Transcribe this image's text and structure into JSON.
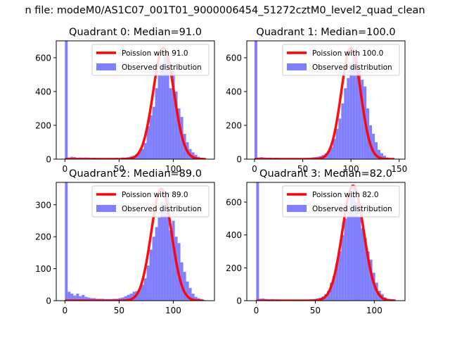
{
  "figure": {
    "suptitle": "n file: modeM0/AS1C07_001T01_9000006454_51272cztM0_level2_quad_clean"
  },
  "chart_data": [
    {
      "type": "bar",
      "title": "Quadrant 0: Median=91.0",
      "xlim": [
        -8,
        138
      ],
      "ylim": [
        0,
        700
      ],
      "xticks": [
        0,
        50,
        100
      ],
      "yticks": [
        0,
        200,
        400,
        600
      ],
      "legend_position": "top-right",
      "hist_color": "#8080ff",
      "hist_series_name": "Observed distribution",
      "hist_bin_width": 2.6,
      "hist_x": [
        0,
        2.6,
        5.2,
        7.8,
        10.4,
        13.0,
        15.6,
        18.2,
        20.8,
        23.4,
        26.0,
        28.6,
        31.2,
        33.8,
        36.4,
        39.0,
        41.6,
        44.2,
        46.8,
        49.4,
        52.0,
        54.6,
        57.2,
        59.8,
        62.4,
        65.0,
        67.6,
        70.2,
        72.8,
        75.4,
        78.0,
        80.6,
        83.2,
        85.8,
        88.4,
        91.0,
        93.6,
        96.2,
        98.8,
        101.4,
        104.0,
        106.6,
        109.2,
        111.8,
        114.4,
        117.0,
        119.6,
        122.2,
        124.8,
        127.4
      ],
      "hist_values": [
        700,
        10,
        14,
        12,
        8,
        10,
        9,
        10,
        9,
        7,
        8,
        6,
        7,
        6,
        5,
        7,
        6,
        6,
        8,
        6,
        10,
        9,
        12,
        16,
        20,
        30,
        42,
        60,
        95,
        195,
        260,
        310,
        420,
        500,
        560,
        640,
        600,
        420,
        560,
        400,
        300,
        250,
        150,
        100,
        60,
        40,
        25,
        14,
        8,
        4
      ],
      "curve_color": "#ff0000",
      "curve_series_name": "Poission with 91.0",
      "curve_mean": 91.0,
      "curve_peak": 660,
      "curve_xmax": 130
    },
    {
      "type": "bar",
      "title": "Quadrant 1: Median=100.0",
      "xlim": [
        -8,
        156
      ],
      "ylim": [
        0,
        700
      ],
      "xticks": [
        0,
        50,
        100,
        150
      ],
      "yticks": [
        0,
        200,
        400,
        600
      ],
      "legend_position": "top-right",
      "hist_color": "#8080ff",
      "hist_series_name": "Observed distribution",
      "hist_bin_width": 2.9,
      "hist_x": [
        0,
        2.9,
        5.8,
        8.7,
        11.6,
        14.5,
        17.4,
        20.3,
        23.2,
        26.1,
        29.0,
        31.9,
        34.8,
        37.7,
        40.6,
        43.5,
        46.4,
        49.3,
        52.2,
        55.1,
        58.0,
        60.9,
        63.8,
        66.7,
        69.6,
        72.5,
        75.4,
        78.3,
        81.2,
        84.1,
        87.0,
        89.9,
        92.8,
        95.7,
        98.6,
        101.5,
        104.4,
        107.3,
        110.2,
        113.1,
        116.0,
        118.9,
        121.8,
        124.7,
        127.6,
        130.5,
        133.4,
        136.3,
        139.2,
        142.1
      ],
      "hist_values": [
        700,
        10,
        12,
        10,
        8,
        9,
        7,
        8,
        7,
        6,
        6,
        5,
        5,
        6,
        4,
        5,
        6,
        6,
        7,
        8,
        10,
        12,
        14,
        18,
        24,
        34,
        50,
        70,
        120,
        180,
        240,
        330,
        420,
        480,
        560,
        650,
        620,
        540,
        470,
        430,
        300,
        200,
        150,
        100,
        55,
        35,
        20,
        10,
        6,
        3
      ],
      "curve_color": "#ff0000",
      "curve_series_name": "Poission with 100.0",
      "curve_mean": 100.0,
      "curve_peak": 660,
      "curve_xmax": 145
    },
    {
      "type": "bar",
      "title": "Quadrant 2: Median=89.0",
      "xlim": [
        -8,
        138
      ],
      "ylim": [
        0,
        370
      ],
      "xticks": [
        0,
        50,
        100
      ],
      "yticks": [
        0,
        100,
        200,
        300
      ],
      "legend_position": "top-right",
      "hist_color": "#8080ff",
      "hist_series_name": "Observed distribution",
      "hist_bin_width": 2.6,
      "hist_x": [
        0,
        2.6,
        5.2,
        7.8,
        10.4,
        13.0,
        15.6,
        18.2,
        20.8,
        23.4,
        26.0,
        28.6,
        31.2,
        33.8,
        36.4,
        39.0,
        41.6,
        44.2,
        46.8,
        49.4,
        52.0,
        54.6,
        57.2,
        59.8,
        62.4,
        65.0,
        67.6,
        70.2,
        72.8,
        75.4,
        78.0,
        80.6,
        83.2,
        85.8,
        88.4,
        91.0,
        93.6,
        96.2,
        98.8,
        101.4,
        104.0,
        106.6,
        109.2,
        111.8,
        114.4,
        117.0,
        119.6,
        122.2,
        124.8,
        127.4
      ],
      "hist_values": [
        370,
        28,
        22,
        16,
        22,
        14,
        18,
        12,
        10,
        8,
        8,
        6,
        6,
        6,
        5,
        5,
        5,
        6,
        6,
        8,
        10,
        14,
        18,
        22,
        28,
        30,
        36,
        50,
        70,
        110,
        160,
        200,
        230,
        260,
        310,
        280,
        340,
        220,
        250,
        200,
        180,
        120,
        90,
        60,
        40,
        22,
        12,
        8,
        4,
        2
      ],
      "curve_color": "#ff0000",
      "curve_series_name": "Poission with 89.0",
      "curve_mean": 89.0,
      "curve_peak": 350,
      "curve_xmax": 128
    },
    {
      "type": "bar",
      "title": "Quadrant 3: Median=82.0",
      "xlim": [
        -8,
        126
      ],
      "ylim": [
        0,
        720
      ],
      "xticks": [
        0,
        50,
        100
      ],
      "yticks": [
        0,
        200,
        400,
        600
      ],
      "legend_position": "top-right",
      "hist_color": "#8080ff",
      "hist_series_name": "Observed distribution",
      "hist_bin_width": 2.4,
      "hist_x": [
        0,
        2.4,
        4.8,
        7.2,
        9.6,
        12.0,
        14.4,
        16.8,
        19.2,
        21.6,
        24.0,
        26.4,
        28.8,
        31.2,
        33.6,
        36.0,
        38.4,
        40.8,
        43.2,
        45.6,
        48.0,
        50.4,
        52.8,
        55.2,
        57.6,
        60.0,
        62.4,
        64.8,
        67.2,
        69.6,
        72.0,
        74.4,
        76.8,
        79.2,
        81.6,
        84.0,
        86.4,
        88.8,
        91.2,
        93.6,
        96.0,
        98.4,
        100.8,
        103.2,
        105.6,
        108.0,
        110.4,
        112.8,
        115.2,
        117.6
      ],
      "hist_values": [
        720,
        12,
        14,
        10,
        8,
        9,
        7,
        8,
        6,
        6,
        5,
        5,
        5,
        5,
        4,
        5,
        5,
        6,
        7,
        8,
        10,
        14,
        18,
        26,
        40,
        60,
        110,
        150,
        230,
        300,
        400,
        500,
        560,
        630,
        690,
        600,
        510,
        440,
        380,
        300,
        250,
        170,
        110,
        60,
        40,
        20,
        10,
        6,
        3,
        2
      ],
      "curve_color": "#ff0000",
      "curve_series_name": "Poission with 82.0",
      "curve_mean": 82.0,
      "curve_peak": 700,
      "curve_xmax": 118
    }
  ]
}
